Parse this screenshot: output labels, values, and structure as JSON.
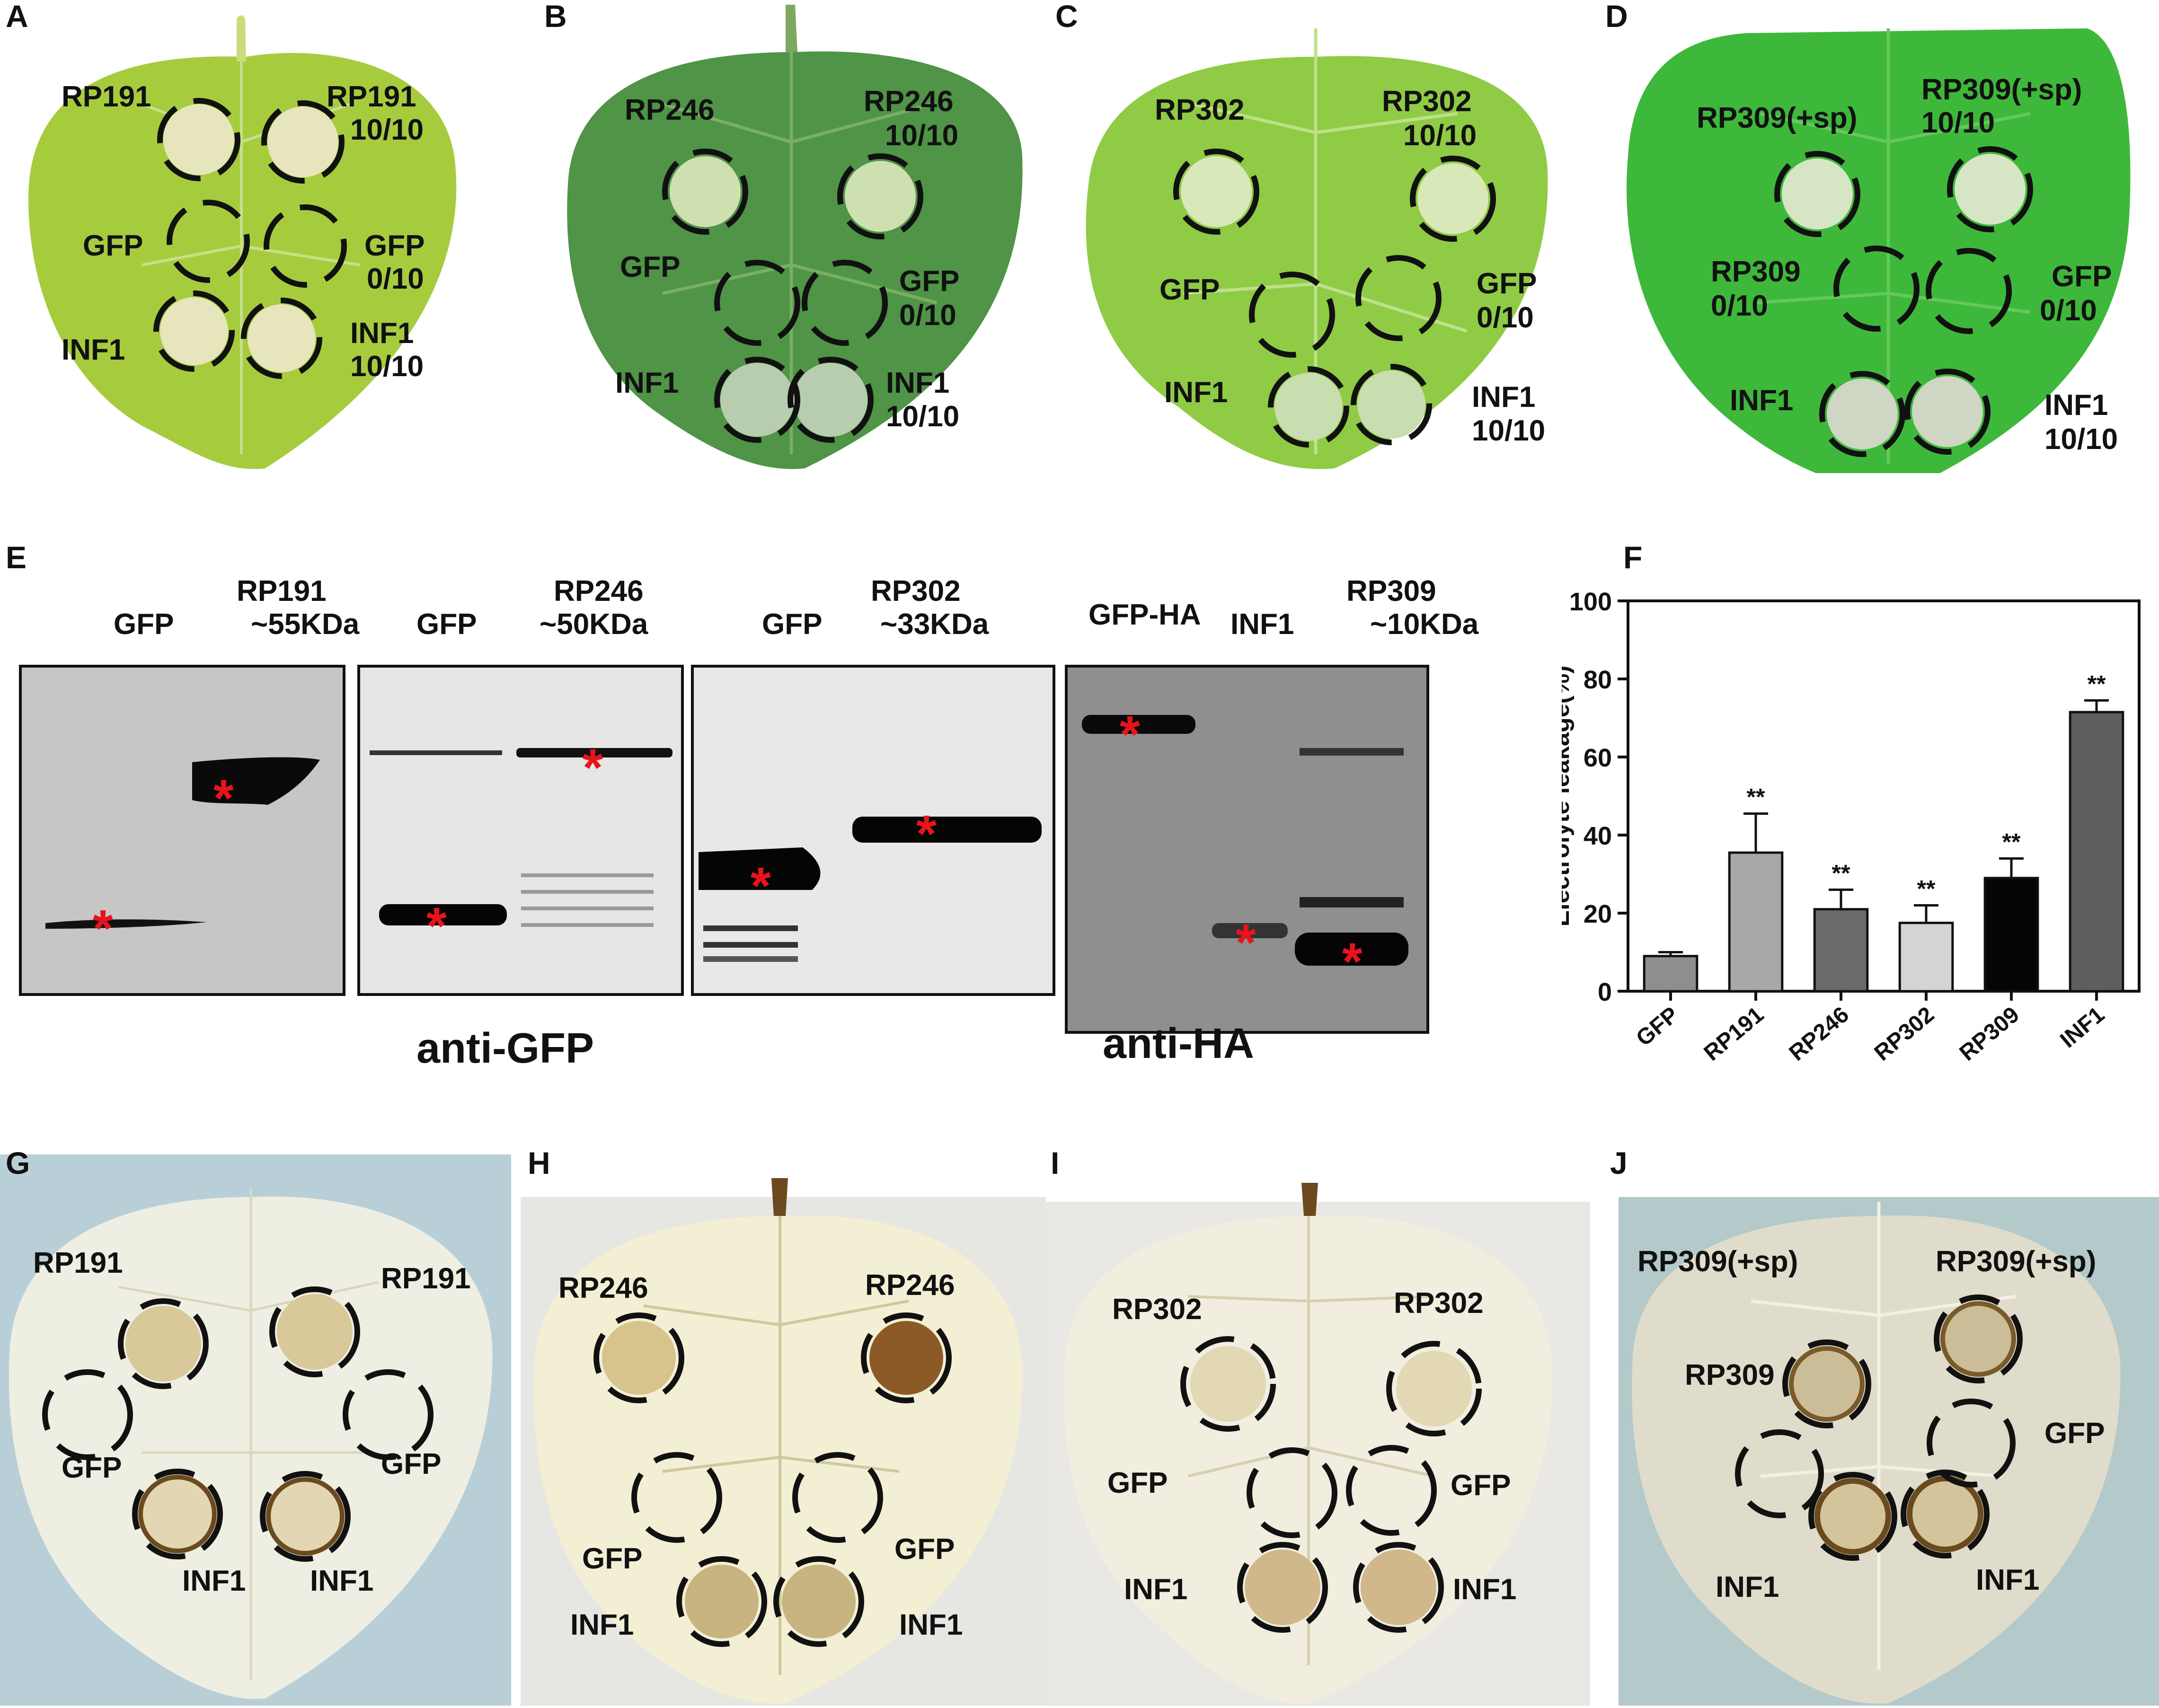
{
  "panels": {
    "A": {
      "letter": "A",
      "labels": [
        "RP191",
        "RP191",
        "10/10",
        "GFP",
        "GFP",
        "0/10",
        "INF1",
        "INF1",
        "10/10"
      ]
    },
    "B": {
      "letter": "B",
      "labels": [
        "RP246",
        "RP246",
        "10/10",
        "GFP",
        "GFP",
        "0/10",
        "INF1",
        "INF1",
        "10/10"
      ]
    },
    "C": {
      "letter": "C",
      "labels": [
        "RP302",
        "RP302",
        "10/10",
        "GFP",
        "GFP",
        "0/10",
        "INF1",
        "INF1",
        "10/10"
      ]
    },
    "D": {
      "letter": "D",
      "labels": [
        "RP309(+sp)",
        "RP309(+sp)",
        "10/10",
        "RP309",
        "0/10",
        "GFP",
        "0/10",
        "INF1",
        "INF1",
        "10/10"
      ]
    },
    "E": {
      "letter": "E",
      "blots": [
        {
          "lanes": [
            "GFP",
            "RP191",
            "~55KDa"
          ]
        },
        {
          "lanes": [
            "GFP",
            "RP246",
            "~50KDa"
          ]
        },
        {
          "lanes": [
            "GFP",
            "RP302",
            "~33KDa"
          ]
        },
        {
          "lanes": [
            "GFP-HA",
            "INF1",
            "RP309",
            "~10KDa"
          ]
        }
      ],
      "antibodies": [
        "anti-GFP",
        "anti-HA"
      ],
      "marker": "*",
      "marker_color": "#e8141b"
    },
    "F": {
      "letter": "F"
    },
    "G": {
      "letter": "G",
      "labels": [
        "RP191",
        "RP191",
        "GFP",
        "GFP",
        "INF1",
        "INF1"
      ]
    },
    "H": {
      "letter": "H",
      "labels": [
        "RP246",
        "RP246",
        "GFP",
        "GFP",
        "INF1",
        "INF1"
      ]
    },
    "I": {
      "letter": "I",
      "labels": [
        "RP302",
        "RP302",
        "GFP",
        "GFP",
        "INF1",
        "INF1"
      ]
    },
    "J": {
      "letter": "J",
      "labels": [
        "RP309(+sp)",
        "RP309(+sp)",
        "RP309",
        "GFP",
        "INF1",
        "INF1"
      ]
    }
  },
  "chart_data": {
    "type": "bar",
    "categories": [
      "GFP",
      "RP191",
      "RP246",
      "RP302",
      "RP309",
      "INF1"
    ],
    "values": [
      9,
      35.5,
      21,
      17.5,
      29,
      71.5
    ],
    "errors": [
      1,
      10,
      5,
      4.5,
      5,
      3
    ],
    "significance": [
      "",
      "**",
      "**",
      "**",
      "**",
      "**"
    ],
    "bar_colors": [
      "#8e8e8e",
      "#a8a8a8",
      "#6a6a6a",
      "#d4d4d4",
      "#050505",
      "#5e5e5e"
    ],
    "ylabel": "Electrolyte leakage(%)",
    "ylim": [
      0,
      100
    ],
    "yticks": [
      0,
      20,
      40,
      60,
      80,
      100
    ]
  }
}
